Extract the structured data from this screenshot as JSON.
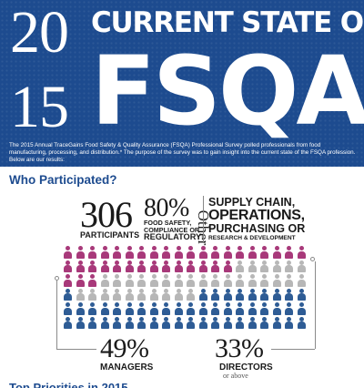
{
  "banner": {
    "year_top": "20",
    "year_bottom": "15",
    "headline_top": "CURRENT STATE OF",
    "headline_big": "FSQA",
    "intro": "The 2015 Annual TraceGains Food Safety & Quality Assurance (FSQA) Professional Survey polled professionals from food manufacturing, processing, and distribution.* The purpose of the survey was to gain insight into the current state of the FSQA profession. Below are our results:",
    "color": "#1d4b8f"
  },
  "section_title": "Who Participated?",
  "stats": {
    "participants_number": "306",
    "participants_label": "PARTICIPANTS",
    "food_safety_percent": "80%",
    "food_safety_line1": "FOOD SAFETY,",
    "food_safety_line2": "COMPLIANCE OR",
    "food_safety_line3": "REGULATORY",
    "other_word": "Other",
    "other_line1": "SUPPLY CHAIN,",
    "other_line2": "OPERATIONS,",
    "other_line3": "PURCHASING OR",
    "other_line4": "RESEARCH & DEVELOPMENT"
  },
  "people_grid": {
    "rows": [
      [
        "m",
        "m",
        "m",
        "m",
        "m",
        "m",
        "m",
        "m",
        "m",
        "m",
        "m",
        "m",
        "m",
        "m",
        "m",
        "m",
        "m",
        "m",
        "m",
        "m"
      ],
      [
        "m",
        "m",
        "m",
        "m",
        "m",
        "m",
        "m",
        "m",
        "m",
        "m",
        "m",
        "m",
        "m",
        "m",
        "g",
        "g",
        "g",
        "g",
        "g",
        "g"
      ],
      [
        "m",
        "m",
        "m",
        "g",
        "g",
        "g",
        "g",
        "g",
        "g",
        "g",
        "g",
        "g",
        "g",
        "g",
        "g",
        "g",
        "g",
        "g",
        "g",
        "g"
      ],
      [
        "b",
        "g",
        "g",
        "g",
        "g",
        "g",
        "g",
        "g",
        "g",
        "g",
        "g",
        "b",
        "b",
        "b",
        "b",
        "b",
        "b",
        "b",
        "b",
        "b"
      ],
      [
        "b",
        "b",
        "b",
        "b",
        "b",
        "b",
        "b",
        "b",
        "b",
        "b",
        "b",
        "b",
        "b",
        "b",
        "b",
        "b",
        "b",
        "b",
        "b",
        "b"
      ],
      [
        "b",
        "b",
        "b",
        "b",
        "b",
        "b",
        "b",
        "b",
        "b",
        "b",
        "b",
        "b",
        "b",
        "b",
        "b",
        "b",
        "b",
        "b",
        "b",
        "b"
      ]
    ],
    "colors": {
      "m": "#a8397a",
      "g": "#b7b7b7",
      "b": "#2e5c95"
    }
  },
  "bottom_stats": {
    "managers_percent": "49%",
    "managers_label": "MANAGERS",
    "directors_percent": "33%",
    "directors_label": "DIRECTORS",
    "directors_sub": "or above"
  },
  "next_section_title": "Top Priorities in 2015"
}
